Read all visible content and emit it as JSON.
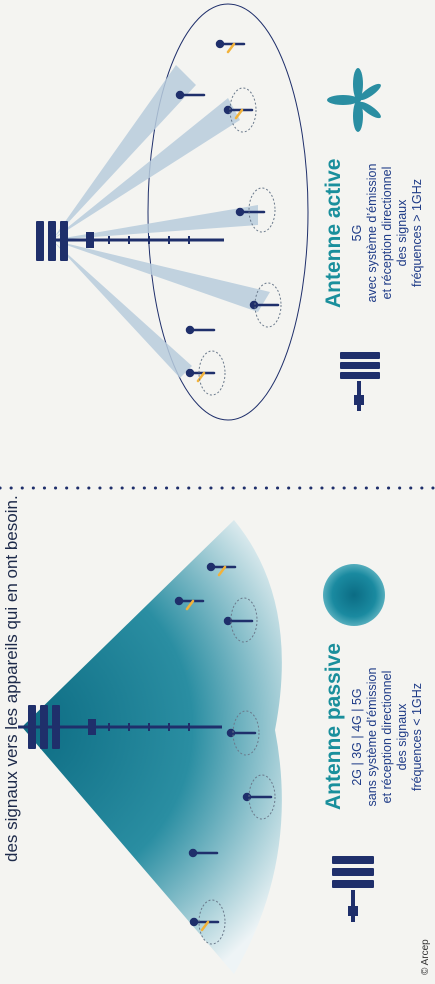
{
  "intro_text": "des signaux vers les appareils qui en ont besoin.",
  "passive": {
    "title": "Antenne passive",
    "lines": [
      "2G | 3G | 4G | 5G",
      "sans système d’émission",
      "et réception directionnel",
      "des signaux",
      "fréquences < 1GHz"
    ]
  },
  "active": {
    "title": "Antenne active",
    "lines": [
      "5G",
      "avec système d’émission",
      "et réception directionnel",
      "des signaux",
      "fréquences > 1GHz"
    ]
  },
  "credit": "© Arcep",
  "colors": {
    "teal": "#0e6f86",
    "navy": "#1f2f6b",
    "accent": "#1a8f9c",
    "beam": "#b9cddd"
  },
  "icons": [
    "passive-antenna-icon",
    "omnidirectional-blob-icon",
    "active-antenna-icon",
    "beam-fan-icon"
  ]
}
